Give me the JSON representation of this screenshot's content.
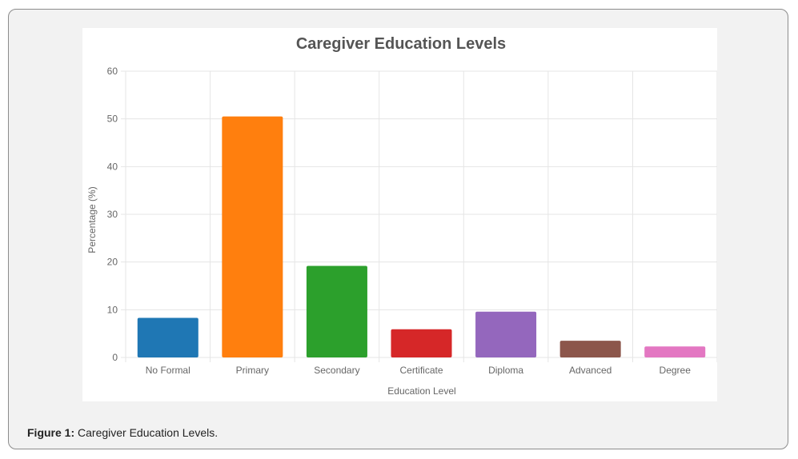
{
  "caption": {
    "label": "Figure 1:",
    "text": " Caregiver Education Levels."
  },
  "chart_data": {
    "type": "bar",
    "title": "Caregiver Education Levels",
    "xlabel": "Education Level",
    "ylabel": "Percentage (%)",
    "categories": [
      "No Formal",
      "Primary",
      "Secondary",
      "Certificate",
      "Diploma",
      "Advanced",
      "Degree"
    ],
    "values": [
      8.3,
      50.5,
      19.2,
      5.9,
      9.6,
      3.5,
      2.3
    ],
    "colors": [
      "#1f77b4",
      "#ff7f0e",
      "#2ca02c",
      "#d62728",
      "#9467bd",
      "#8c564b",
      "#e377c2"
    ],
    "ylim": [
      0,
      60
    ],
    "yticks": [
      "0",
      "10",
      "20",
      "30",
      "40",
      "50",
      "60"
    ],
    "grid": true,
    "legend": "none"
  }
}
